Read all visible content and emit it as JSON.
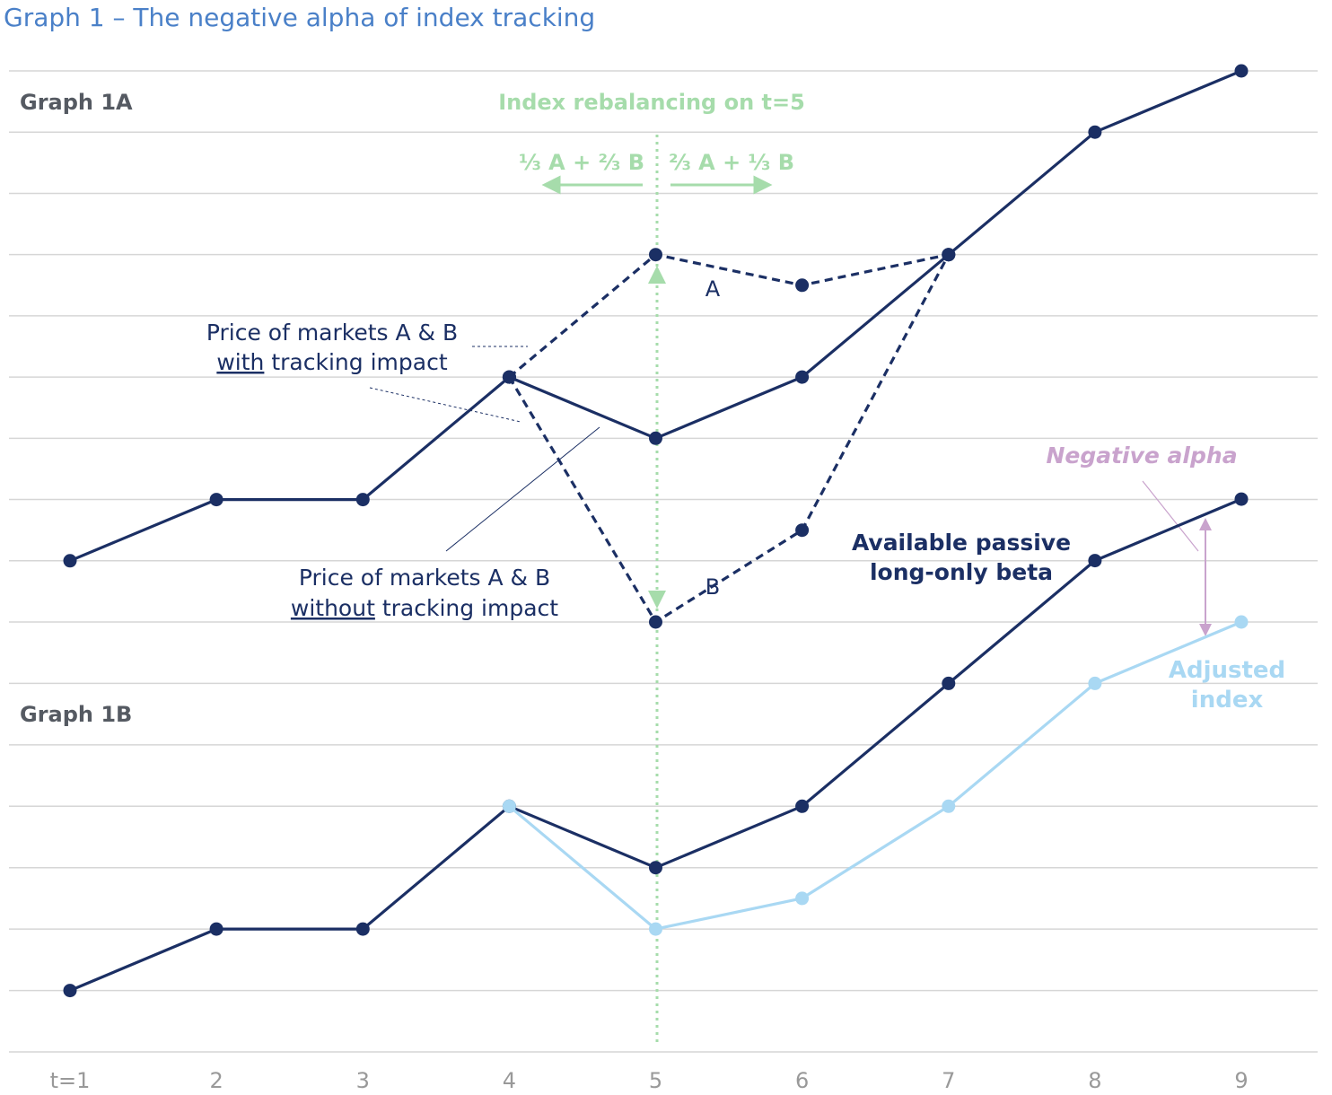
{
  "title": "Graph 1 – The negative alpha of index tracking",
  "chart_data": [
    {
      "type": "line",
      "panel_label": "Graph 1A",
      "x": [
        1,
        2,
        3,
        4,
        5,
        6,
        7,
        8,
        9
      ],
      "y_rows": 9,
      "series": [
        {
          "name": "",
          "style": "solid",
          "color": "#1b2f64",
          "x": [
            1,
            2,
            3,
            4,
            5,
            6,
            7,
            8,
            9
          ],
          "y": [
            1,
            2,
            2,
            4,
            3,
            4,
            6,
            8,
            9
          ]
        },
        {
          "name": "A",
          "style": "dashed",
          "color": "#1b2f64",
          "x": [
            4,
            5,
            6,
            7
          ],
          "y": [
            4,
            6,
            5.5,
            6
          ]
        },
        {
          "name": "B",
          "style": "dashed",
          "color": "#1b2f64",
          "x": [
            4,
            5,
            6,
            7
          ],
          "y": [
            4,
            0,
            1.5,
            6
          ]
        }
      ],
      "annotations": {
        "rebalancing": "Index rebalancing on t=5",
        "left_weight": "⅓ A + ⅔ B",
        "right_weight": "⅔ A + ⅓ B",
        "with_line1": "Price of markets A & B",
        "with_underlined": "with",
        "with_rest": " tracking impact",
        "without_line1": "Price of markets A & B",
        "without_underlined": "without",
        "without_rest": " tracking impact",
        "series_a_label": "A",
        "series_b_label": "B",
        "beta_line1": "Available passive",
        "beta_line2": "long-only beta",
        "negative_alpha": "Negative alpha"
      }
    },
    {
      "type": "line",
      "panel_label": "Graph 1B",
      "x": [
        1,
        2,
        3,
        4,
        5,
        6,
        7,
        8,
        9
      ],
      "y_rows": 9,
      "series": [
        {
          "name": "",
          "style": "solid",
          "color": "#1b2f64",
          "x": [
            1,
            2,
            3,
            4,
            5,
            6,
            7,
            8,
            9
          ],
          "y": [
            1,
            2,
            2,
            4,
            3,
            4,
            6,
            8,
            9
          ]
        },
        {
          "name": "Adjusted index",
          "style": "solid",
          "color": "#a9d8f3",
          "x": [
            4,
            5,
            6,
            7,
            8,
            9
          ],
          "y": [
            4,
            2,
            2.5,
            4,
            6,
            7
          ]
        }
      ],
      "annotations": {
        "adjusted_line1": "Adjusted",
        "adjusted_line2": "index"
      }
    }
  ],
  "x_tick_labels": [
    "t=1",
    "2",
    "3",
    "4",
    "5",
    "6",
    "7",
    "8",
    "9"
  ],
  "colors": {
    "title": "#4a80c8",
    "navy": "#1b2f64",
    "green": "#a6dcab",
    "light_blue": "#a9d8f3",
    "purple": "#c9a3cd",
    "panel_label": "#555a62",
    "tick_label": "#999999",
    "grid": "#d6d6d6"
  }
}
